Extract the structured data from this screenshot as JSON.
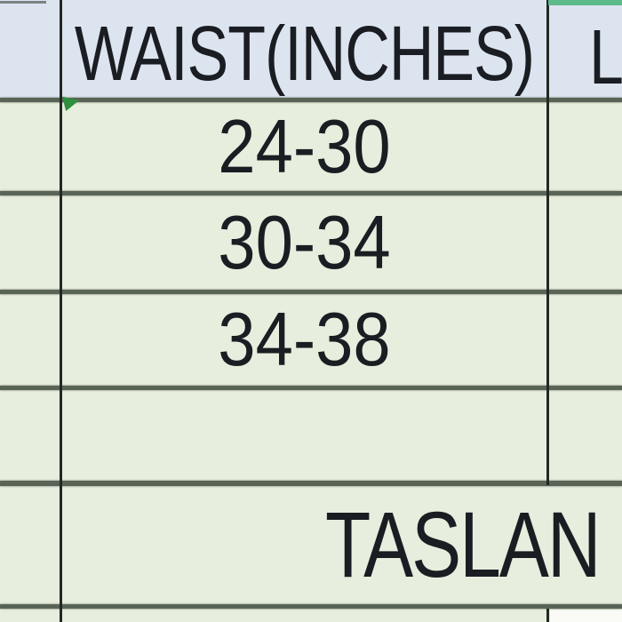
{
  "spreadsheet": {
    "columns": {
      "waist_header": "WAIST(INCHES)",
      "length_header_partial": "L"
    },
    "rows": [
      {
        "waist": "24-30"
      },
      {
        "waist": "30-34"
      },
      {
        "waist": "34-38"
      },
      {
        "waist": ""
      }
    ],
    "merged_footer": {
      "text": "TASLAN"
    }
  },
  "icons": {
    "error_indicator": "green-corner-triangle",
    "selection_border": "green-top-selection-edge"
  },
  "colors": {
    "header_bg": "#dce4f0",
    "row_bg": "#e8eede",
    "grid_heavy": "#5a6456",
    "grid_vertical": "#232823",
    "selection_green": "#5bb98a",
    "error_indicator_green": "#2f8f3f",
    "bottom_right_cell_bg": "#fafbf7",
    "text": "#1a1d22"
  }
}
